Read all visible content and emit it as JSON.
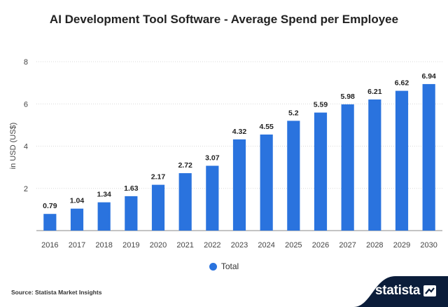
{
  "header": {
    "title": "AI Development Tool Software - Average Spend per Employee"
  },
  "chart_data": {
    "type": "bar",
    "title": "AI Development Tool Software - Average Spend per Employee",
    "xlabel": "",
    "ylabel": "in USD (US$)",
    "ylim": [
      0,
      8
    ],
    "yticks": [
      "2",
      "4",
      "6",
      "8"
    ],
    "grid": true,
    "legend": "bottom-center",
    "categories": [
      "2016",
      "2017",
      "2018",
      "2019",
      "2020",
      "2021",
      "2022",
      "2023",
      "2024",
      "2025",
      "2026",
      "2027",
      "2028",
      "2029",
      "2030"
    ],
    "series": [
      {
        "name": "Total",
        "values": [
          0.79,
          1.04,
          1.34,
          1.63,
          2.17,
          2.72,
          3.07,
          4.32,
          4.55,
          5.2,
          5.59,
          5.98,
          6.21,
          6.62,
          6.94
        ],
        "labels": [
          "0.79",
          "1.04",
          "1.34",
          "1.63",
          "2.17",
          "2.72",
          "3.07",
          "4.32",
          "4.55",
          "5.2",
          "5.59",
          "5.98",
          "6.21",
          "6.62",
          "6.94"
        ]
      }
    ]
  },
  "colors": {
    "bar": "#2a73de",
    "brand_band": "#0b1d3a"
  },
  "footer": {
    "source": "Source: Statista Market Insights",
    "brand": "statista",
    "brand_icon": "statista-logo-icon"
  }
}
